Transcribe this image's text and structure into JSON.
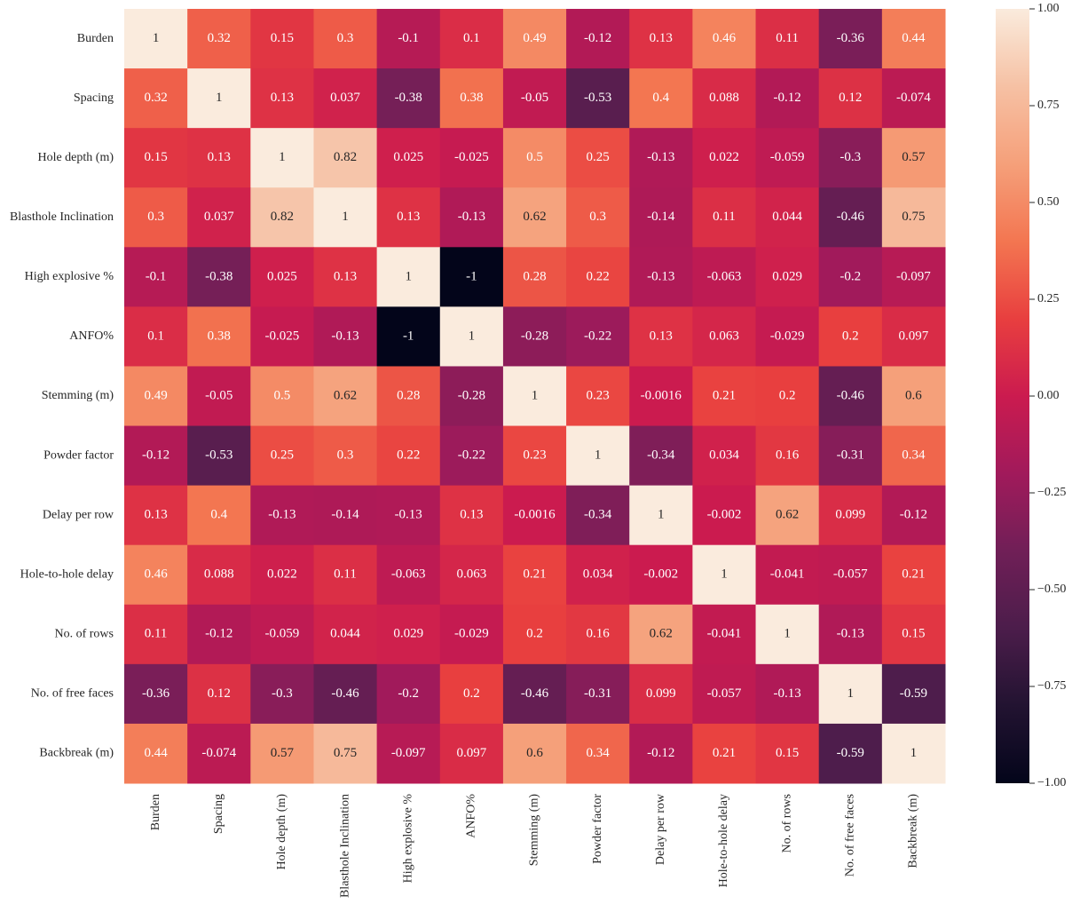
{
  "chart_data": {
    "type": "heatmap",
    "categories": [
      "Burden",
      "Spacing",
      "Hole depth (m)",
      "Blasthole Inclination",
      "High explosive %",
      "ANFO%",
      "Stemming (m)",
      "Powder factor",
      "Delay per row",
      "Hole-to-hole delay",
      "No. of rows",
      "No. of free faces",
      "Backbreak (m)"
    ],
    "values": [
      [
        1,
        0.32,
        0.15,
        0.3,
        -0.1,
        0.1,
        0.49,
        -0.12,
        0.13,
        0.46,
        0.11,
        -0.36,
        0.44
      ],
      [
        0.32,
        1,
        0.13,
        0.037,
        -0.38,
        0.38,
        -0.05,
        -0.53,
        0.4,
        0.088,
        -0.12,
        0.12,
        -0.074
      ],
      [
        0.15,
        0.13,
        1,
        0.82,
        0.025,
        -0.025,
        0.5,
        0.25,
        -0.13,
        0.022,
        -0.059,
        -0.3,
        0.57
      ],
      [
        0.3,
        0.037,
        0.82,
        1,
        0.13,
        -0.13,
        0.62,
        0.3,
        -0.14,
        0.11,
        0.044,
        -0.46,
        0.75
      ],
      [
        -0.1,
        -0.38,
        0.025,
        0.13,
        1,
        -1,
        0.28,
        0.22,
        -0.13,
        -0.063,
        0.029,
        -0.2,
        -0.097
      ],
      [
        0.1,
        0.38,
        -0.025,
        -0.13,
        -1,
        1,
        -0.28,
        -0.22,
        0.13,
        0.063,
        -0.029,
        0.2,
        0.097
      ],
      [
        0.49,
        -0.05,
        0.5,
        0.62,
        0.28,
        -0.28,
        1,
        0.23,
        -0.0016,
        0.21,
        0.2,
        -0.46,
        0.6
      ],
      [
        -0.12,
        -0.53,
        0.25,
        0.3,
        0.22,
        -0.22,
        0.23,
        1,
        -0.34,
        0.034,
        0.16,
        -0.31,
        0.34
      ],
      [
        0.13,
        0.4,
        -0.13,
        -0.14,
        -0.13,
        0.13,
        -0.0016,
        -0.34,
        1,
        -0.002,
        0.62,
        0.099,
        -0.12
      ],
      [
        0.46,
        0.088,
        0.022,
        0.11,
        -0.063,
        0.063,
        0.21,
        0.034,
        -0.002,
        1,
        -0.041,
        -0.057,
        0.21
      ],
      [
        0.11,
        -0.12,
        -0.059,
        0.044,
        0.029,
        -0.029,
        0.2,
        0.16,
        0.62,
        -0.041,
        1,
        -0.13,
        0.15
      ],
      [
        -0.36,
        0.12,
        -0.3,
        -0.46,
        -0.2,
        0.2,
        -0.46,
        -0.31,
        0.099,
        -0.057,
        -0.13,
        1,
        -0.59
      ],
      [
        0.44,
        -0.074,
        0.57,
        0.75,
        -0.097,
        0.097,
        0.6,
        0.34,
        -0.12,
        0.21,
        0.15,
        -0.59,
        1
      ]
    ],
    "colormap": "rocket",
    "clim": [
      -1,
      1
    ],
    "cticks": [
      {
        "value": 1,
        "label": "1.00"
      },
      {
        "value": 0.75,
        "label": "0.75"
      },
      {
        "value": 0.5,
        "label": "0.50"
      },
      {
        "value": 0.25,
        "label": "0.25"
      },
      {
        "value": 0,
        "label": "0.00"
      },
      {
        "value": -0.25,
        "label": "−0.25"
      },
      {
        "value": -0.5,
        "label": "−0.50"
      },
      {
        "value": -0.75,
        "label": "−0.75"
      },
      {
        "value": -1,
        "label": "−1.00"
      }
    ]
  }
}
